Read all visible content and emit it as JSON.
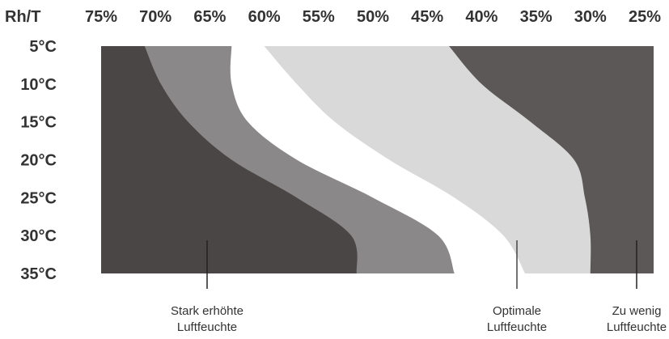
{
  "chart_data": {
    "type": "heatmap",
    "corner_label": "Rh/T",
    "x_ticks": [
      "75%",
      "70%",
      "65%",
      "60%",
      "55%",
      "50%",
      "45%",
      "40%",
      "35%",
      "30%",
      "25%"
    ],
    "y_ticks": [
      "5°C",
      "10°C",
      "15°C",
      "20°C",
      "25°C",
      "30°C",
      "35°C"
    ],
    "x_values": [
      75,
      70,
      65,
      60,
      55,
      50,
      45,
      40,
      35,
      30,
      25
    ],
    "y_values": [
      5,
      10,
      15,
      20,
      25,
      30,
      35
    ],
    "grid": false,
    "zones": [
      {
        "order": 1,
        "color": "#4a4646",
        "rh_left_boundary": [
          75,
          75,
          75,
          75,
          75,
          75,
          75
        ]
      },
      {
        "order": 2,
        "color": "#8a8888",
        "rh_left_boundary": [
          71,
          69.5,
          67,
          63,
          57,
          52,
          51.5
        ]
      },
      {
        "order": 3,
        "color": "#ffffff",
        "rh_left_boundary": [
          63,
          63,
          61.5,
          57,
          50,
          44,
          42.5
        ]
      },
      {
        "order": 4,
        "color": "#d9d9d9",
        "rh_left_boundary": [
          60,
          57,
          53.5,
          48.5,
          42.5,
          38,
          36
        ]
      },
      {
        "order": 5,
        "color": "#5c5858",
        "rh_left_boundary": [
          43,
          40,
          35.5,
          31.5,
          30.5,
          30,
          30
        ]
      }
    ],
    "annotations": [
      {
        "lines": [
          "Stark erhöhte",
          "Luftfeuchte"
        ],
        "rh": 63
      },
      {
        "lines": [
          "Optimale",
          "Luftfeuchte"
        ],
        "rh": 39
      },
      {
        "lines": [
          "Zu wenig",
          "Luftfeuchte"
        ],
        "rh": 26
      }
    ]
  }
}
